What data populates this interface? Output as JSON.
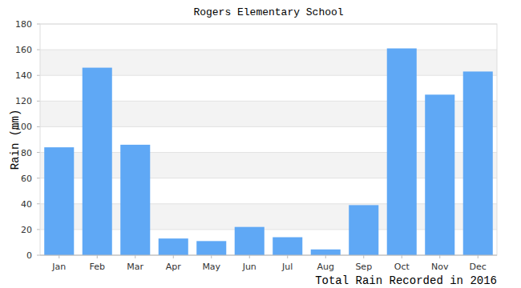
{
  "chart_data": {
    "type": "bar",
    "title": "Rogers Elementary School",
    "y_label": "Rain (mm)",
    "x_label": "Total Rain Recorded in 2016",
    "categories": [
      "Jan",
      "Feb",
      "Mar",
      "Apr",
      "May",
      "Jun",
      "Jul",
      "Aug",
      "Sep",
      "Oct",
      "Nov",
      "Dec"
    ],
    "values": [
      84,
      146,
      86,
      13,
      11,
      22,
      14,
      4.5,
      39,
      161,
      125,
      143
    ],
    "color": "#5fa8f5",
    "ylim": [
      0,
      180
    ],
    "yticks": [
      0,
      20,
      40,
      60,
      80,
      100,
      120,
      140,
      160,
      180
    ],
    "grid": true
  }
}
